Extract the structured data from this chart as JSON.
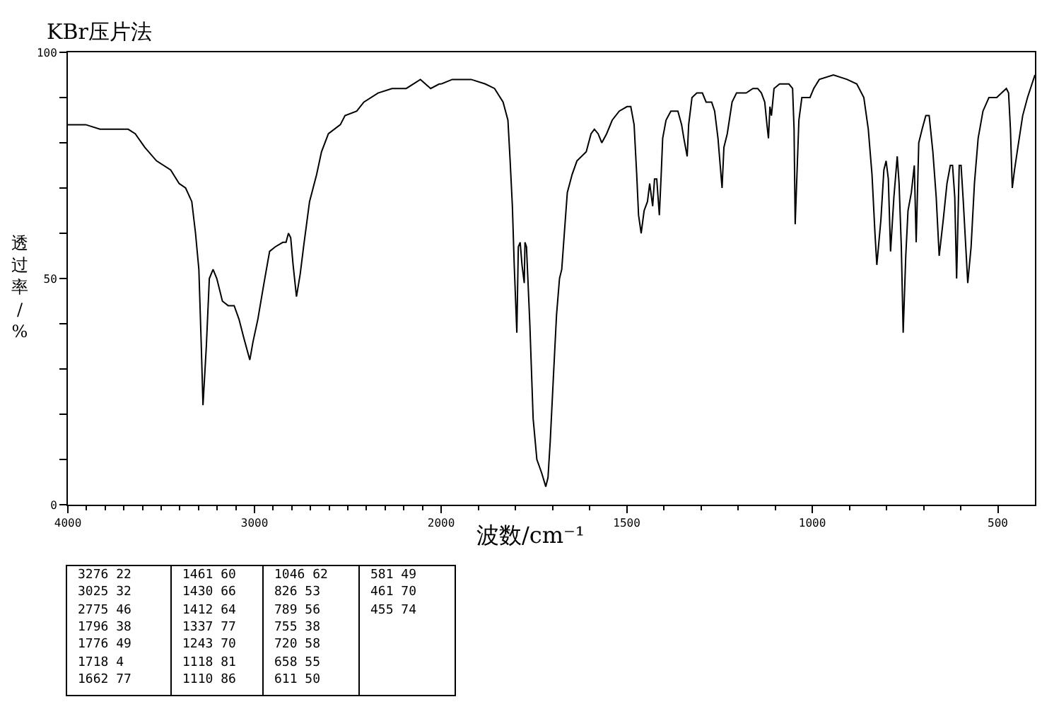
{
  "chart_data": [
    {
      "type": "line",
      "title": "KBr压片法",
      "xlabel": "波数/cm⁻¹",
      "ylabel": "透过率/%",
      "x": [
        4000,
        3904,
        3828,
        3753,
        3677,
        3639,
        3588,
        3525,
        3449,
        3404,
        3369,
        3336,
        3316,
        3298,
        3285,
        3276,
        3258,
        3242,
        3222,
        3202,
        3172,
        3141,
        3109,
        3083,
        3058,
        3025,
        3008,
        2982,
        2949,
        2919,
        2889,
        2848,
        2831,
        2818,
        2806,
        2793,
        2775,
        2755,
        2737,
        2705,
        2667,
        2641,
        2604,
        2540,
        2515,
        2452,
        2414,
        2338,
        2263,
        2187,
        2111,
        2056,
        2010,
        2000
      ],
      "series": [
        {
          "color": "#000000",
          "values": [
            84,
            84,
            83,
            83,
            83,
            82,
            79,
            76,
            74,
            71,
            70,
            67,
            60,
            52,
            35,
            22,
            35,
            50,
            52,
            50,
            45,
            44,
            44,
            41,
            37,
            32,
            36,
            41,
            49,
            56,
            57,
            58,
            58,
            60,
            59,
            53,
            46,
            51,
            57,
            67,
            73,
            78,
            82,
            84,
            86,
            87,
            89,
            91,
            92,
            92,
            94,
            92,
            93,
            93
          ]
        }
      ],
      "xlim": [
        4000,
        2000
      ],
      "xticks": [
        4000,
        {
          "value": 3900,
          "label": null
        },
        {
          "value": 3800,
          "label": null
        },
        {
          "value": 3700,
          "label": null
        },
        {
          "value": 3600,
          "label": null
        },
        {
          "value": 3500,
          "label": null
        },
        {
          "value": 3400,
          "label": null
        },
        {
          "value": 3300,
          "label": null
        },
        {
          "value": 3200,
          "label": null
        },
        {
          "value": 3100,
          "label": null
        },
        3000,
        {
          "value": 2900,
          "label": null
        },
        {
          "value": 2800,
          "label": null
        },
        {
          "value": 2700,
          "label": null
        },
        {
          "value": 2600,
          "label": null
        },
        {
          "value": 2500,
          "label": null
        },
        {
          "value": 2400,
          "label": null
        },
        {
          "value": 2300,
          "label": null
        },
        {
          "value": 2200,
          "label": null
        },
        {
          "value": 2100,
          "label": null
        },
        2000
      ],
      "ylim": [
        0,
        100
      ],
      "yticks": [
        0,
        {
          "value": 10,
          "label": null
        },
        {
          "value": 20,
          "label": null
        },
        {
          "value": 30,
          "label": null
        },
        {
          "value": 40,
          "label": null
        },
        50,
        {
          "value": 60,
          "label": null
        },
        {
          "value": 70,
          "label": null
        },
        {
          "value": 80,
          "label": null
        },
        {
          "value": 90,
          "label": null
        },
        100
      ],
      "annotations": [
        "3276 22",
        "3025 32",
        "2775 46",
        "1796 38",
        "1776 49",
        "1718 4",
        "1662 77",
        "1461 60",
        "1430 66",
        "1412 64",
        "1337 77",
        "1243 70",
        "1118 81",
        "1110 86",
        "1046 62",
        "826 53",
        "789 56",
        "755 38",
        "720 58",
        "658 55",
        "611 50",
        "581 49",
        "461 70",
        "455 74"
      ]
    },
    {
      "type": "line",
      "x": [
        2000,
        1970,
        1919,
        1881,
        1856,
        1833,
        1820,
        1814,
        1808,
        1803,
        1796,
        1792,
        1787,
        1782,
        1776,
        1774,
        1770,
        1761,
        1752,
        1742,
        1729,
        1718,
        1712,
        1706,
        1697,
        1689,
        1681,
        1675,
        1668,
        1660,
        1647,
        1634,
        1609,
        1596,
        1587,
        1577,
        1567,
        1554,
        1539,
        1520,
        1499,
        1489,
        1480,
        1473,
        1468,
        1461,
        1453,
        1444,
        1438,
        1430,
        1425,
        1419,
        1412,
        1407,
        1403,
        1394,
        1381,
        1362,
        1352,
        1346,
        1337,
        1333,
        1324,
        1311,
        1296,
        1286,
        1277,
        1271,
        1263,
        1254,
        1248,
        1243,
        1238,
        1229,
        1216,
        1204,
        1178,
        1160,
        1147,
        1137,
        1128,
        1122,
        1118,
        1114,
        1110,
        1103,
        1088,
        1063,
        1053,
        1049,
        1046,
        1036,
        1028,
        1019,
        1006,
        996,
        981,
        943,
        906,
        880,
        861,
        849,
        839,
        831,
        826,
        815,
        807,
        801,
        795,
        789,
        780,
        771,
        766,
        760,
        755,
        748,
        742,
        733,
        725,
        720,
        713,
        704,
        694,
        685,
        675,
        666,
        658,
        647,
        637,
        628,
        622,
        616,
        611,
        604,
        599,
        593,
        587,
        581,
        572,
        563,
        553,
        540,
        524,
        503,
        490,
        477,
        471,
        466,
        461,
        455,
        446,
        433,
        420,
        408,
        400
      ],
      "series": [
        {
          "color": "#000000",
          "values": [
            93,
            94,
            94,
            93,
            92,
            89,
            85,
            76,
            66,
            53,
            38,
            57,
            58,
            53,
            49,
            58,
            57,
            40,
            19,
            10,
            7,
            4,
            6,
            14,
            29,
            42,
            50,
            52,
            60,
            69,
            73,
            76,
            78,
            82,
            83,
            82,
            80,
            82,
            85,
            87,
            88,
            88,
            84,
            73,
            64,
            60,
            65,
            67,
            71,
            66,
            72,
            72,
            64,
            73,
            81,
            85,
            87,
            87,
            84,
            81,
            77,
            84,
            90,
            91,
            91,
            89,
            89,
            89,
            87,
            81,
            75,
            70,
            79,
            82,
            89,
            91,
            91,
            92,
            92,
            91,
            89,
            84,
            81,
            88,
            86,
            92,
            93,
            93,
            92,
            83,
            62,
            85,
            90,
            90,
            90,
            92,
            94,
            95,
            94,
            93,
            90,
            83,
            73,
            60,
            53,
            63,
            74,
            76,
            72,
            56,
            68,
            77,
            71,
            57,
            38,
            55,
            65,
            69,
            75,
            58,
            80,
            83,
            86,
            86,
            78,
            68,
            55,
            63,
            71,
            75,
            75,
            68,
            50,
            75,
            75,
            67,
            58,
            49,
            57,
            71,
            81,
            87,
            90,
            90,
            91,
            92,
            91,
            83,
            70,
            74,
            79,
            86,
            90,
            93,
            95
          ]
        }
      ],
      "xlim": [
        2000,
        400
      ],
      "xticks": [
        {
          "value": 1900,
          "label": null
        },
        {
          "value": 1800,
          "label": null
        },
        {
          "value": 1700,
          "label": null
        },
        {
          "value": 1600,
          "label": null
        },
        1500,
        {
          "value": 1400,
          "label": null
        },
        {
          "value": 1300,
          "label": null
        },
        {
          "value": 1200,
          "label": null
        },
        {
          "value": 1100,
          "label": null
        },
        1000,
        {
          "value": 900,
          "label": null
        },
        {
          "value": 800,
          "label": null
        },
        {
          "value": 700,
          "label": null
        },
        {
          "value": 600,
          "label": null
        },
        500
      ],
      "ylim": [
        0,
        100
      ],
      "tick_labels": "x"
    }
  ]
}
